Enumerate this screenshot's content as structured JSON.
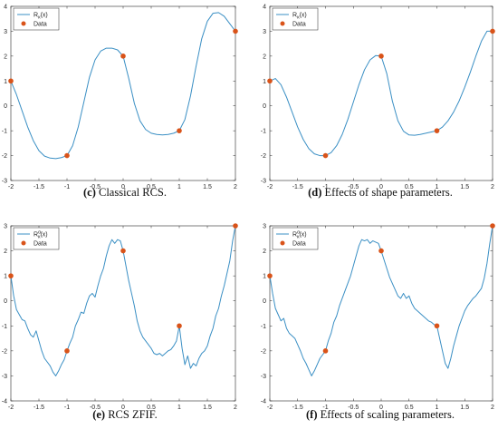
{
  "colors": {
    "curve": "#3a8fc4",
    "data": "#d95319",
    "axis": "#262626"
  },
  "chart_data": [
    {
      "type": "line",
      "caption_tag": "(c)",
      "caption_text": " Classical RCS.",
      "xlim": [
        -2,
        2
      ],
      "ylim": [
        -3,
        4
      ],
      "xticks": [
        -2,
        -1.5,
        -1,
        -0.5,
        0,
        0.5,
        1,
        1.5,
        2
      ],
      "yticks": [
        -3,
        -2,
        -1,
        0,
        1,
        2,
        3,
        4
      ],
      "grid": false,
      "legend_position": "top-left",
      "series": [
        {
          "name_base": "R",
          "name_sub": "κ",
          "name_sup": "",
          "name_tail": "(x)",
          "kind": "line",
          "x": [
            -2,
            -1.9,
            -1.8,
            -1.7,
            -1.6,
            -1.5,
            -1.4,
            -1.3,
            -1.2,
            -1.1,
            -1,
            -0.9,
            -0.8,
            -0.7,
            -0.6,
            -0.5,
            -0.4,
            -0.3,
            -0.2,
            -0.1,
            0,
            0.1,
            0.2,
            0.3,
            0.4,
            0.5,
            0.6,
            0.7,
            0.8,
            0.9,
            1,
            1.1,
            1.2,
            1.3,
            1.4,
            1.5,
            1.6,
            1.7,
            1.8,
            1.9,
            2
          ],
          "y": [
            1,
            0.45,
            -0.2,
            -0.85,
            -1.4,
            -1.8,
            -2.02,
            -2.1,
            -2.12,
            -2.08,
            -2,
            -1.6,
            -0.85,
            0.15,
            1.15,
            1.85,
            2.2,
            2.32,
            2.32,
            2.25,
            2,
            1.1,
            0.1,
            -0.6,
            -0.95,
            -1.1,
            -1.15,
            -1.17,
            -1.15,
            -1.1,
            -1,
            -0.55,
            0.4,
            1.6,
            2.7,
            3.4,
            3.72,
            3.75,
            3.6,
            3.3,
            3
          ]
        },
        {
          "name": "Data",
          "kind": "points",
          "x": [
            -2,
            -1,
            0,
            1,
            2
          ],
          "y": [
            1,
            -2,
            2,
            -1,
            3
          ]
        }
      ]
    },
    {
      "type": "line",
      "caption_tag": "(d)",
      "caption_text": " Effects of shape parameters.",
      "xlim": [
        -2,
        2
      ],
      "ylim": [
        -3,
        4
      ],
      "xticks": [
        -2,
        -1.5,
        -1,
        -0.5,
        0,
        0.5,
        1,
        1.5,
        2
      ],
      "yticks": [
        -3,
        -2,
        -1,
        0,
        1,
        2,
        3,
        4
      ],
      "grid": false,
      "legend_position": "top-left",
      "series": [
        {
          "name_base": "R",
          "name_sub": "κ",
          "name_sup": "",
          "name_tail": "(x)",
          "kind": "line",
          "x": [
            -2,
            -1.9,
            -1.8,
            -1.7,
            -1.6,
            -1.5,
            -1.4,
            -1.3,
            -1.2,
            -1.1,
            -1,
            -0.9,
            -0.8,
            -0.7,
            -0.6,
            -0.5,
            -0.4,
            -0.3,
            -0.2,
            -0.1,
            0,
            0.1,
            0.2,
            0.3,
            0.4,
            0.5,
            0.6,
            0.7,
            0.8,
            0.9,
            1,
            1.1,
            1.2,
            1.3,
            1.4,
            1.5,
            1.6,
            1.7,
            1.8,
            1.9,
            2
          ],
          "y": [
            1,
            1.1,
            0.85,
            0.35,
            -0.25,
            -0.85,
            -1.35,
            -1.72,
            -1.93,
            -2,
            -2,
            -1.88,
            -1.6,
            -1.15,
            -0.55,
            0.15,
            0.85,
            1.45,
            1.85,
            2.02,
            2,
            1.3,
            0.2,
            -0.6,
            -1.02,
            -1.17,
            -1.18,
            -1.15,
            -1.1,
            -1.05,
            -1,
            -0.85,
            -0.6,
            -0.25,
            0.2,
            0.75,
            1.35,
            2.0,
            2.6,
            3.0,
            3
          ]
        },
        {
          "name": "Data",
          "kind": "points",
          "x": [
            -2,
            -1,
            0,
            1,
            2
          ],
          "y": [
            1,
            -2,
            2,
            -1,
            3
          ]
        }
      ]
    },
    {
      "type": "line",
      "caption_tag": "(e)",
      "caption_text": " RCS ZFIF.",
      "xlim": [
        -2,
        2
      ],
      "ylim": [
        -4,
        3
      ],
      "xticks": [
        -2,
        -1.5,
        -1,
        -0.5,
        0,
        0.5,
        1,
        1.5,
        2
      ],
      "yticks": [
        -4,
        -3,
        -2,
        -1,
        0,
        1,
        2,
        3
      ],
      "grid": false,
      "legend_position": "top-left",
      "series": [
        {
          "name_base": "R",
          "name_sub": "κ",
          "name_sup": "α",
          "name_tail": "(x)",
          "kind": "line",
          "x": [
            -2,
            -1.95,
            -1.9,
            -1.85,
            -1.8,
            -1.75,
            -1.7,
            -1.65,
            -1.6,
            -1.55,
            -1.5,
            -1.45,
            -1.4,
            -1.35,
            -1.3,
            -1.25,
            -1.2,
            -1.15,
            -1.1,
            -1.05,
            -1,
            -0.95,
            -0.9,
            -0.85,
            -0.8,
            -0.75,
            -0.7,
            -0.65,
            -0.6,
            -0.55,
            -0.5,
            -0.45,
            -0.4,
            -0.35,
            -0.3,
            -0.25,
            -0.2,
            -0.15,
            -0.1,
            -0.05,
            0,
            0.05,
            0.1,
            0.15,
            0.2,
            0.25,
            0.3,
            0.35,
            0.4,
            0.45,
            0.5,
            0.55,
            0.6,
            0.65,
            0.7,
            0.75,
            0.8,
            0.85,
            0.9,
            0.95,
            1,
            1.05,
            1.1,
            1.15,
            1.2,
            1.25,
            1.3,
            1.35,
            1.4,
            1.45,
            1.5,
            1.55,
            1.6,
            1.65,
            1.7,
            1.75,
            1.8,
            1.85,
            1.9,
            1.95,
            2
          ],
          "y": [
            1,
            0.2,
            -0.35,
            -0.55,
            -0.75,
            -0.8,
            -1.1,
            -1.35,
            -1.45,
            -1.2,
            -1.6,
            -2.0,
            -2.3,
            -2.45,
            -2.6,
            -2.85,
            -3.0,
            -2.8,
            -2.55,
            -2.35,
            -2,
            -1.7,
            -1.45,
            -1.0,
            -0.75,
            -0.45,
            -0.5,
            -0.1,
            0.2,
            0.3,
            0.15,
            0.6,
            1.0,
            1.3,
            1.8,
            2.2,
            2.45,
            2.3,
            2.45,
            2.4,
            2,
            1.4,
            0.8,
            0.3,
            -0.2,
            -0.8,
            -1.2,
            -1.45,
            -1.6,
            -1.75,
            -1.9,
            -2.1,
            -2.15,
            -2.1,
            -2.2,
            -2.1,
            -2.0,
            -1.95,
            -1.8,
            -1.6,
            -1,
            -1.9,
            -2.55,
            -2.2,
            -2.7,
            -2.5,
            -2.6,
            -2.3,
            -2.1,
            -2.0,
            -1.8,
            -1.4,
            -1.1,
            -0.6,
            -0.3,
            0.2,
            0.6,
            1.1,
            1.6,
            2.4,
            3
          ]
        },
        {
          "name": "Data",
          "kind": "points",
          "x": [
            -2,
            -1,
            0,
            1,
            2
          ],
          "y": [
            1,
            -2,
            2,
            -1,
            3
          ]
        }
      ]
    },
    {
      "type": "line",
      "caption_tag": "(f)",
      "caption_text": " Effects of scaling parameters.",
      "xlim": [
        -2,
        2
      ],
      "ylim": [
        -4,
        3
      ],
      "xticks": [
        -2,
        -1.5,
        -1,
        -0.5,
        0,
        0.5,
        1,
        1.5,
        2
      ],
      "yticks": [
        -4,
        -3,
        -2,
        -1,
        0,
        1,
        2,
        3
      ],
      "grid": false,
      "legend_position": "top-left",
      "series": [
        {
          "name_base": "R",
          "name_sub": "κ",
          "name_sup": "α",
          "name_tail": "(x)",
          "kind": "line",
          "x": [
            -2,
            -1.95,
            -1.9,
            -1.85,
            -1.8,
            -1.75,
            -1.7,
            -1.65,
            -1.6,
            -1.55,
            -1.5,
            -1.45,
            -1.4,
            -1.35,
            -1.3,
            -1.25,
            -1.2,
            -1.15,
            -1.1,
            -1.05,
            -1,
            -0.95,
            -0.9,
            -0.85,
            -0.8,
            -0.75,
            -0.7,
            -0.65,
            -0.6,
            -0.55,
            -0.5,
            -0.45,
            -0.4,
            -0.35,
            -0.3,
            -0.25,
            -0.2,
            -0.15,
            -0.1,
            -0.05,
            0,
            0.05,
            0.1,
            0.15,
            0.2,
            0.25,
            0.3,
            0.35,
            0.4,
            0.45,
            0.5,
            0.55,
            0.6,
            0.65,
            0.7,
            0.75,
            0.8,
            0.85,
            0.9,
            0.95,
            1,
            1.05,
            1.1,
            1.15,
            1.2,
            1.25,
            1.3,
            1.35,
            1.4,
            1.45,
            1.5,
            1.55,
            1.6,
            1.65,
            1.7,
            1.75,
            1.8,
            1.85,
            1.9,
            1.95,
            2
          ],
          "y": [
            1,
            0.3,
            -0.3,
            -0.55,
            -0.8,
            -0.7,
            -1.1,
            -1.3,
            -1.4,
            -1.5,
            -1.75,
            -2.0,
            -2.3,
            -2.5,
            -2.75,
            -3.0,
            -2.8,
            -2.55,
            -2.3,
            -2.15,
            -2,
            -1.6,
            -1.3,
            -0.85,
            -0.6,
            -0.2,
            0.1,
            0.4,
            0.7,
            1.0,
            1.4,
            1.8,
            2.2,
            2.45,
            2.4,
            2.45,
            2.3,
            2.4,
            2.35,
            2.3,
            2,
            1.65,
            1.3,
            0.95,
            0.7,
            0.45,
            0.2,
            0.1,
            0.3,
            0.1,
            0.2,
            -0.1,
            -0.3,
            -0.4,
            -0.5,
            -0.6,
            -0.7,
            -0.8,
            -0.85,
            -0.95,
            -1,
            -1.5,
            -2.0,
            -2.5,
            -2.7,
            -2.3,
            -1.8,
            -1.4,
            -1.0,
            -0.7,
            -0.4,
            -0.2,
            -0.05,
            0.1,
            0.2,
            0.35,
            0.5,
            0.9,
            1.5,
            2.3,
            3
          ]
        },
        {
          "name": "Data",
          "kind": "points",
          "x": [
            -2,
            -1,
            0,
            1,
            2
          ],
          "y": [
            1,
            -2,
            2,
            -1,
            3
          ]
        }
      ]
    }
  ]
}
